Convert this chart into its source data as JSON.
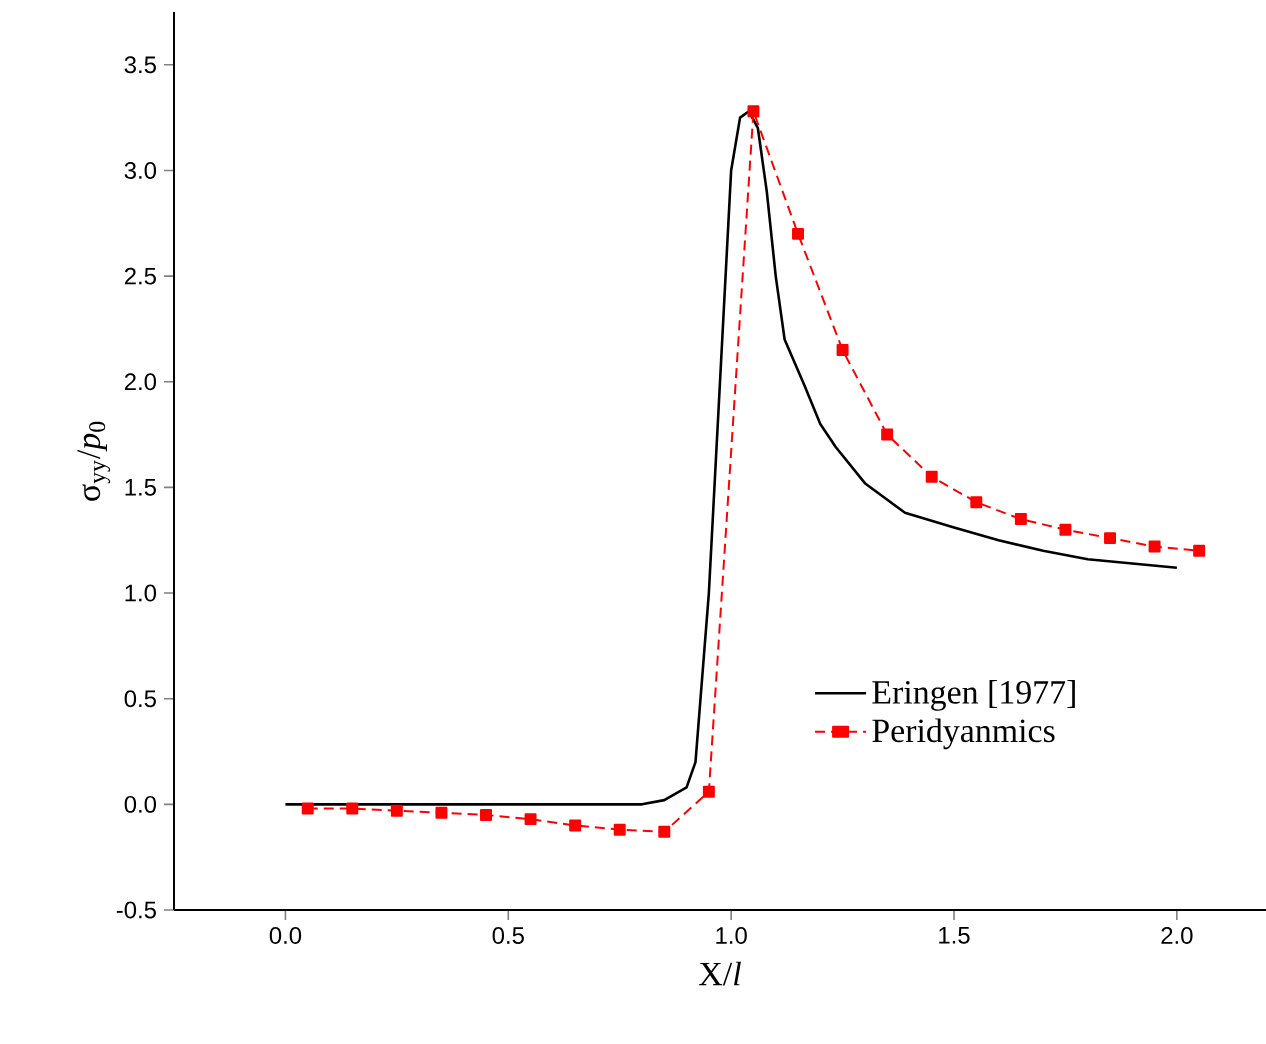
{
  "chart_data": {
    "type": "line",
    "xlabel": "X/*l*",
    "ylabel": "σ$_{yy}$/*p*$_{0}$",
    "xlim": [
      -0.25,
      2.2
    ],
    "ylim": [
      -0.5,
      3.75
    ],
    "xticks": [
      {
        "value": 0,
        "label": "0.0"
      },
      {
        "value": 0.5,
        "label": "0.5"
      },
      {
        "value": 1,
        "label": "1.0"
      },
      {
        "value": 1.5,
        "label": "1.5"
      },
      {
        "value": 2,
        "label": "2.0"
      }
    ],
    "yticks": [
      {
        "value": -0.5,
        "label": "-0.5"
      },
      {
        "value": 0,
        "label": "0.0"
      },
      {
        "value": 0.5,
        "label": "0.5"
      },
      {
        "value": 1,
        "label": "1.0"
      },
      {
        "value": 1.5,
        "label": "1.5"
      },
      {
        "value": 2,
        "label": "2.0"
      },
      {
        "value": 2.5,
        "label": "2.5"
      },
      {
        "value": 3,
        "label": "3.0"
      },
      {
        "value": 3.5,
        "label": "3.5"
      }
    ],
    "legend": "right",
    "grid": false,
    "series": [
      {
        "name": "Eringen [1977]",
        "color": "#000000",
        "line_style": "solid",
        "marker": "none",
        "x": [
          0,
          0.8,
          0.85,
          0.9,
          0.92,
          0.95,
          0.98,
          1.0,
          1.02,
          1.04,
          1.06,
          1.08,
          1.1,
          1.12,
          1.165,
          1.2,
          1.235,
          1.3,
          1.39,
          1.5,
          1.6,
          1.7,
          1.8,
          1.9,
          2.0
        ],
        "values": [
          0,
          0,
          0.02,
          0.08,
          0.2,
          1.0,
          2.2,
          3.0,
          3.25,
          3.28,
          3.2,
          2.9,
          2.5,
          2.2,
          1.98,
          1.8,
          1.69,
          1.52,
          1.38,
          1.31,
          1.25,
          1.2,
          1.16,
          1.14,
          1.12
        ]
      },
      {
        "name": "Peridyanmics",
        "color": "#ff0000",
        "line_style": "dashed",
        "marker": "square",
        "x": [
          0.05,
          0.15,
          0.25,
          0.35,
          0.45,
          0.55,
          0.65,
          0.75,
          0.85,
          0.95,
          1.05,
          1.15,
          1.25,
          1.35,
          1.45,
          1.55,
          1.65,
          1.75,
          1.85,
          1.95,
          2.05
        ],
        "values": [
          -0.02,
          -0.02,
          -0.03,
          -0.04,
          -0.05,
          -0.07,
          -0.1,
          -0.12,
          -0.13,
          0.06,
          3.28,
          2.7,
          2.15,
          1.75,
          1.55,
          1.43,
          1.35,
          1.3,
          1.26,
          1.22,
          1.2
        ]
      }
    ]
  }
}
